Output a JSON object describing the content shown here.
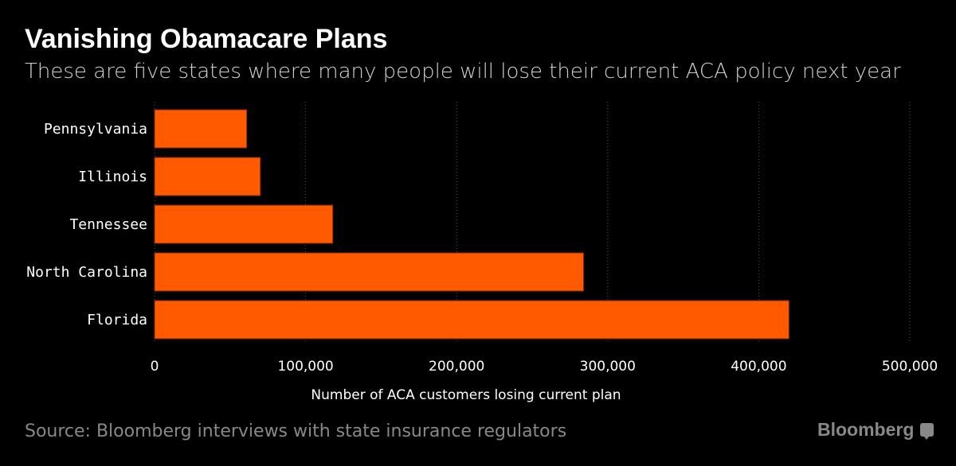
{
  "header": {
    "title": "Vanishing Obamacare Plans",
    "subtitle": "These are five states where many people will lose their current ACA policy next year"
  },
  "footer": {
    "source": "Source: Bloomberg interviews with state insurance regulators",
    "logo": "Bloomberg"
  },
  "colors": {
    "bar": "#ff5a00",
    "bar_edge": "#8a2a00",
    "grid": "#555555",
    "muted": "#888888"
  },
  "chart_data": {
    "type": "bar",
    "orientation": "horizontal",
    "title": "Vanishing Obamacare Plans",
    "subtitle": "These are five states where many people will lose their current ACA policy next year",
    "categories": [
      "Pennsylvania",
      "Illinois",
      "Tennessee",
      "North Carolina",
      "Florida"
    ],
    "values": [
      61000,
      70000,
      118000,
      284000,
      420000
    ],
    "xlabel": "Number of ACA customers losing current plan",
    "ylabel": "",
    "xlim": [
      0,
      500000
    ],
    "xticks": [
      0,
      100000,
      200000,
      300000,
      400000,
      500000
    ],
    "xtick_labels": [
      "0",
      "100,000",
      "200,000",
      "300,000",
      "400,000",
      "500,000"
    ],
    "grid": "vertical dotted",
    "legend": "none"
  }
}
